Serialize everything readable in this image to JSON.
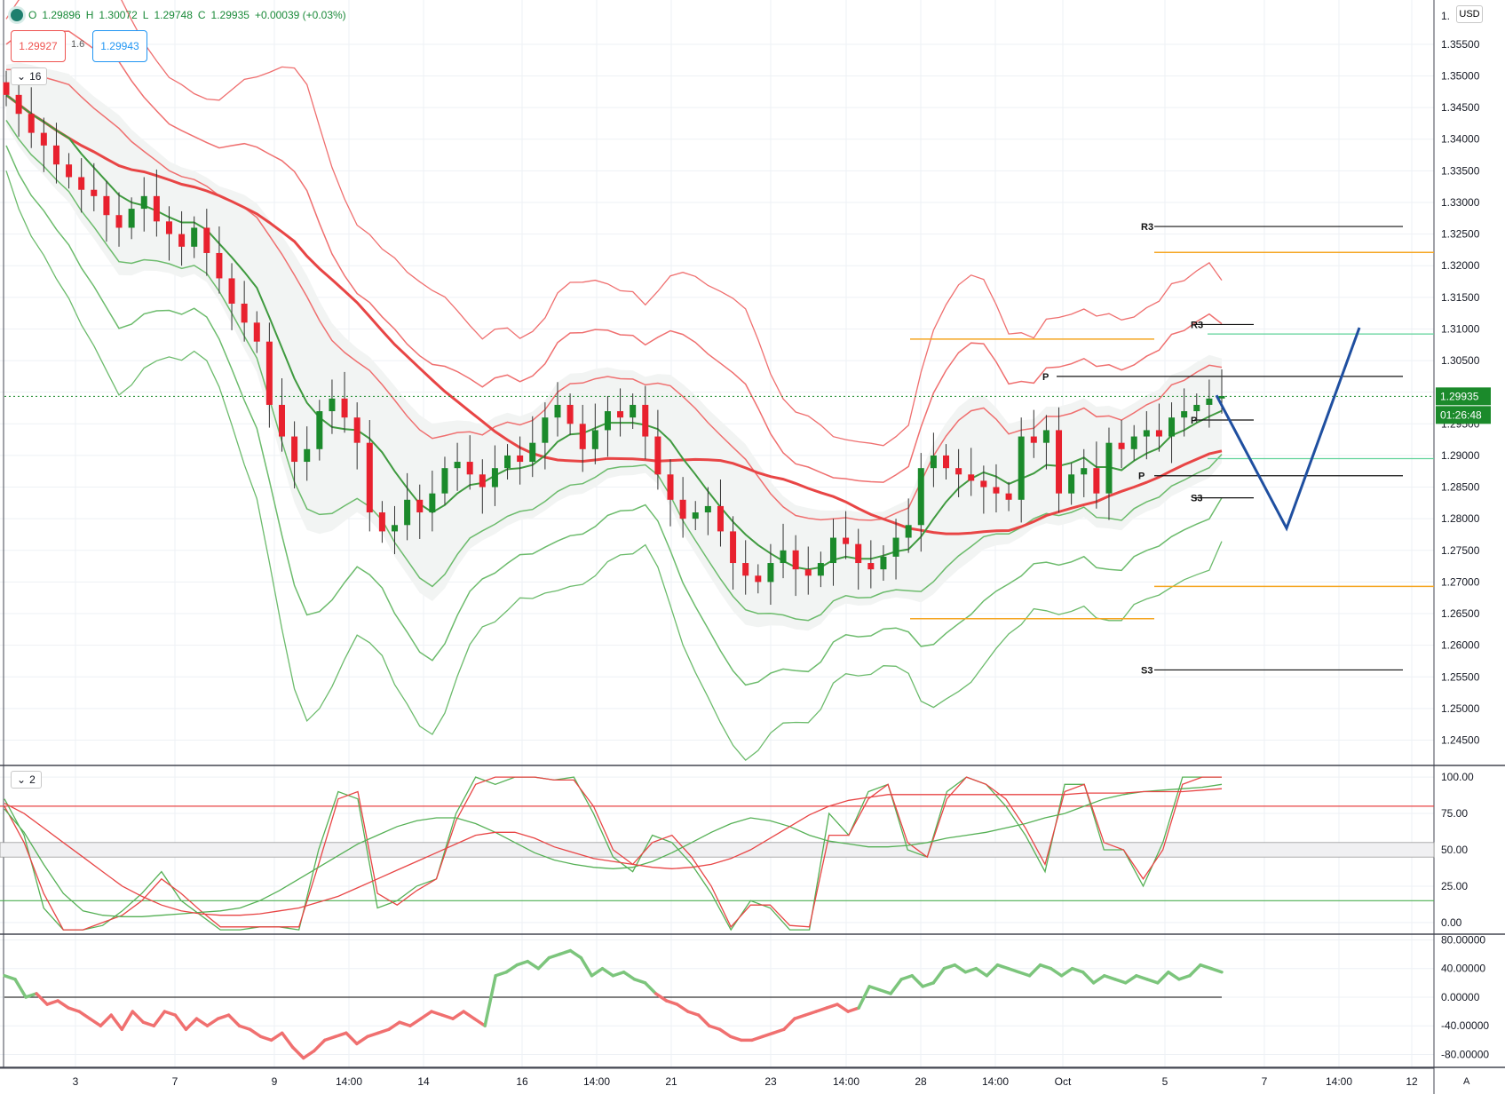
{
  "header": {
    "open_label": "O",
    "open": "1.29896",
    "high_label": "H",
    "high": "1.30072",
    "low_label": "L",
    "low": "1.29748",
    "close_label": "C",
    "close": "1.29935",
    "change": "+0.00039 (+0.03%)",
    "sell_price": "1.29927",
    "spread": "1.6",
    "buy_price": "1.29943",
    "pane_main_label": "16",
    "pane_osc_label": "2",
    "currency": "USD",
    "auto_label": "A"
  },
  "price_axis": {
    "ticks": [
      "1.35500",
      "1.35000",
      "1.34500",
      "1.34000",
      "1.33500",
      "1.33000",
      "1.32500",
      "1.32000",
      "1.31500",
      "1.31000",
      "1.30500",
      "1.30000",
      "1.29500",
      "1.29000",
      "1.28500",
      "1.28000",
      "1.27500",
      "1.27000",
      "1.26500",
      "1.26000",
      "1.25500",
      "1.25000",
      "1.24500"
    ],
    "top_label": "1.",
    "last_price": "1.29935",
    "countdown": "01:26:48"
  },
  "osc_axis": {
    "ticks": [
      "100.00",
      "75.00",
      "50.00",
      "25.00",
      "0.00"
    ]
  },
  "momentum_axis": {
    "ticks": [
      "80.00000",
      "40.00000",
      "0.00000",
      "-40.00000",
      "-80.00000"
    ]
  },
  "time_axis": {
    "labels": [
      "3",
      "7",
      "9",
      "14:00",
      "14",
      "16",
      "14:00",
      "21",
      "23",
      "14:00",
      "28",
      "14:00",
      "Oct",
      "5",
      "7",
      "14:00",
      "12"
    ]
  },
  "pivot_labels": {
    "weekly": {
      "r3": "R3",
      "p": "P",
      "s3": "S3"
    },
    "daily": {
      "r3": "R3",
      "p": "P",
      "s3": "S3"
    },
    "small": {
      "p": "P"
    }
  },
  "colors": {
    "bull": "#1b8a2b",
    "bear": "#e8212e",
    "upper_band": "#ef6f6f",
    "lower_band": "#6cbb6c",
    "projection": "#1f4fa0",
    "orange": "#f5a623",
    "mint": "#5fd39a"
  },
  "chart_data": [
    {
      "type": "candlestick",
      "symbol_quote": {
        "open": 1.29896,
        "high": 1.30072,
        "low": 1.29748,
        "close": 1.29935
      },
      "y_range": [
        1.241,
        1.362
      ],
      "grid": true,
      "last_price": 1.29935,
      "closes": [
        1.347,
        1.344,
        1.341,
        1.339,
        1.336,
        1.334,
        1.332,
        1.331,
        1.328,
        1.326,
        1.329,
        1.331,
        1.327,
        1.325,
        1.323,
        1.326,
        1.322,
        1.318,
        1.314,
        1.311,
        1.308,
        1.298,
        1.293,
        1.289,
        1.291,
        1.297,
        1.299,
        1.296,
        1.292,
        1.281,
        1.278,
        1.279,
        1.283,
        1.281,
        1.284,
        1.288,
        1.289,
        1.287,
        1.285,
        1.288,
        1.29,
        1.289,
        1.292,
        1.296,
        1.298,
        1.295,
        1.291,
        1.294,
        1.297,
        1.296,
        1.298,
        1.293,
        1.287,
        1.283,
        1.28,
        1.281,
        1.282,
        1.278,
        1.273,
        1.271,
        1.27,
        1.273,
        1.275,
        1.272,
        1.271,
        1.273,
        1.277,
        1.276,
        1.273,
        1.272,
        1.274,
        1.277,
        1.279,
        1.288,
        1.29,
        1.288,
        1.287,
        1.286,
        1.285,
        1.284,
        1.283,
        1.293,
        1.292,
        1.294,
        1.284,
        1.287,
        1.288,
        1.284,
        1.292,
        1.291,
        1.293,
        1.294,
        1.293,
        1.296,
        1.297,
        1.298,
        1.299,
        1.2994
      ],
      "pivots": {
        "weekly": {
          "R3": 1.3262,
          "P": 1.2868,
          "S3": 1.2561,
          "upper": 1.3221,
          "lower": 1.2693
        },
        "daily": {
          "R3": 1.3107,
          "P": 1.3025,
          "S3": 1.2833,
          "upper": 1.3084,
          "lower": 1.2642,
          "p_small": 1.2956,
          "mint": 1.3092,
          "mint2": 1.2895
        }
      },
      "projection": [
        {
          "x": "5",
          "y": 1.2995
        },
        {
          "x": "7",
          "y": 1.2785
        },
        {
          "x": "14:00",
          "y": 1.3102
        }
      ]
    },
    {
      "type": "line",
      "pane": "stochastic",
      "y_range": [
        -8,
        108
      ],
      "levels": {
        "upper": 80,
        "mid_high": 55,
        "mid_low": 45,
        "lower": 15
      },
      "series": [
        {
          "values": [
            85,
            60,
            10,
            -5,
            -5,
            -2,
            8,
            20,
            35,
            15,
            5,
            -5,
            -5,
            -3,
            -3,
            -5,
            50,
            90,
            85,
            10,
            15,
            25,
            30,
            75,
            100,
            95,
            100,
            100,
            98,
            100,
            75,
            45,
            35,
            60,
            55,
            40,
            20,
            -5,
            15,
            10,
            -5,
            -5,
            75,
            60,
            90,
            95,
            50,
            45,
            90,
            100,
            95,
            80,
            60,
            35,
            95,
            95,
            50,
            50,
            25,
            55,
            100,
            100,
            100
          ]
        },
        {
          "values": [
            80,
            55,
            20,
            -5,
            -5,
            0,
            5,
            15,
            30,
            20,
            8,
            -3,
            -3,
            -3,
            -3,
            -3,
            40,
            85,
            90,
            20,
            12,
            22,
            30,
            70,
            95,
            100,
            100,
            100,
            98,
            98,
            80,
            50,
            40,
            55,
            60,
            45,
            25,
            -3,
            12,
            12,
            -2,
            -3,
            60,
            60,
            85,
            95,
            55,
            45,
            85,
            100,
            95,
            85,
            65,
            40,
            90,
            95,
            55,
            50,
            30,
            50,
            95,
            100,
            100
          ]
        },
        {
          "values": [
            78,
            62,
            40,
            20,
            8,
            5,
            4,
            4,
            5,
            6,
            7,
            8,
            10,
            15,
            22,
            30,
            38,
            46,
            54,
            60,
            66,
            70,
            72,
            72,
            68,
            62,
            55,
            48,
            43,
            40,
            38,
            37,
            38,
            42,
            48,
            55,
            62,
            68,
            72,
            70,
            66,
            60,
            56,
            54,
            52,
            52,
            53,
            55,
            58,
            60,
            62,
            65,
            68,
            72,
            75,
            80,
            85,
            88,
            90,
            91,
            92,
            93,
            95
          ]
        },
        {
          "values": [
            82,
            75,
            65,
            55,
            45,
            35,
            25,
            18,
            12,
            8,
            6,
            5,
            5,
            6,
            8,
            10,
            14,
            18,
            24,
            30,
            36,
            42,
            48,
            54,
            60,
            62,
            62,
            58,
            52,
            48,
            44,
            42,
            40,
            38,
            37,
            38,
            40,
            44,
            50,
            58,
            66,
            74,
            80,
            84,
            86,
            88,
            88,
            88,
            88,
            88,
            88,
            88,
            88,
            88,
            88,
            89,
            89,
            89,
            90,
            90,
            90,
            91,
            92
          ]
        }
      ]
    },
    {
      "type": "line",
      "pane": "momentum",
      "y_range": [
        -98,
        88
      ],
      "zero_line": 0,
      "values": [
        30,
        25,
        0,
        5,
        -10,
        -5,
        -15,
        -20,
        -30,
        -40,
        -25,
        -45,
        -20,
        -35,
        -40,
        -20,
        -25,
        -45,
        -30,
        -40,
        -30,
        -25,
        -40,
        -45,
        -55,
        -60,
        -50,
        -70,
        -85,
        -75,
        -60,
        -55,
        -50,
        -65,
        -55,
        -50,
        -45,
        -35,
        -40,
        -30,
        -20,
        -25,
        -30,
        -20,
        -30,
        -40,
        30,
        35,
        45,
        50,
        40,
        55,
        60,
        65,
        55,
        30,
        40,
        30,
        35,
        25,
        20,
        5,
        -5,
        -10,
        -20,
        -25,
        -40,
        -45,
        -55,
        -60,
        -60,
        -55,
        -50,
        -45,
        -30,
        -25,
        -20,
        -15,
        -10,
        -20,
        -15,
        15,
        10,
        5,
        25,
        30,
        15,
        20,
        40,
        45,
        35,
        40,
        30,
        45,
        40,
        35,
        30,
        45,
        40,
        30,
        40,
        35,
        20,
        30,
        25,
        20,
        30,
        25,
        20,
        35,
        25,
        30,
        45,
        40,
        35
      ]
    }
  ]
}
